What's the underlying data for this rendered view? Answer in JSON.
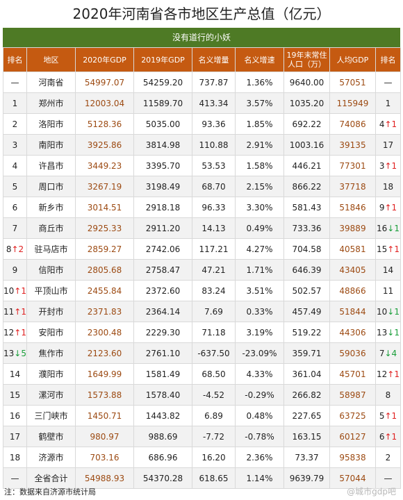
{
  "title": "2020年河南省各市地区生产总值（亿元）",
  "subtitle": "没有道行的小妖",
  "headers": [
    "排名",
    "地区",
    "2020年GDP",
    "2019年GDP",
    "名义增量",
    "名义增速",
    "19年末常住\n人口（万）",
    "人均GDP",
    "排名"
  ],
  "rows": [
    {
      "rank": "—",
      "rank_change": "",
      "region": "河南省",
      "gdp2020": "54997.07",
      "gdp2019": "54259.20",
      "increase": "737.87",
      "growth": "1.36%",
      "population": "9640.00",
      "per_capita": "57051",
      "pc_rank": "—",
      "pc_change": ""
    },
    {
      "rank": "1",
      "rank_change": "",
      "region": "郑州市",
      "gdp2020": "12003.04",
      "gdp2019": "11589.70",
      "increase": "413.34",
      "growth": "3.57%",
      "population": "1035.20",
      "per_capita": "115949",
      "pc_rank": "1",
      "pc_change": ""
    },
    {
      "rank": "2",
      "rank_change": "",
      "region": "洛阳市",
      "gdp2020": "5128.36",
      "gdp2019": "5035.00",
      "increase": "93.36",
      "growth": "1.85%",
      "population": "692.22",
      "per_capita": "74086",
      "pc_rank": "4",
      "pc_change": "↑1"
    },
    {
      "rank": "3",
      "rank_change": "",
      "region": "南阳市",
      "gdp2020": "3925.86",
      "gdp2019": "3814.98",
      "increase": "110.88",
      "growth": "2.91%",
      "population": "1003.16",
      "per_capita": "39135",
      "pc_rank": "17",
      "pc_change": ""
    },
    {
      "rank": "4",
      "rank_change": "",
      "region": "许昌市",
      "gdp2020": "3449.23",
      "gdp2019": "3395.70",
      "increase": "53.53",
      "growth": "1.58%",
      "population": "446.21",
      "per_capita": "77301",
      "pc_rank": "3",
      "pc_change": "↑1"
    },
    {
      "rank": "5",
      "rank_change": "",
      "region": "周口市",
      "gdp2020": "3267.19",
      "gdp2019": "3198.49",
      "increase": "68.70",
      "growth": "2.15%",
      "population": "866.22",
      "per_capita": "37718",
      "pc_rank": "18",
      "pc_change": ""
    },
    {
      "rank": "6",
      "rank_change": "",
      "region": "新乡市",
      "gdp2020": "3014.51",
      "gdp2019": "2918.18",
      "increase": "96.33",
      "growth": "3.30%",
      "population": "581.43",
      "per_capita": "51846",
      "pc_rank": "9",
      "pc_change": "↑1"
    },
    {
      "rank": "7",
      "rank_change": "",
      "region": "商丘市",
      "gdp2020": "2925.33",
      "gdp2019": "2911.20",
      "increase": "14.13",
      "growth": "0.49%",
      "population": "733.36",
      "per_capita": "39889",
      "pc_rank": "16",
      "pc_change": "↓1"
    },
    {
      "rank": "8",
      "rank_change": "↑2",
      "region": "驻马店市",
      "gdp2020": "2859.27",
      "gdp2019": "2742.06",
      "increase": "117.21",
      "growth": "4.27%",
      "population": "704.58",
      "per_capita": "40581",
      "pc_rank": "15",
      "pc_change": "↑1"
    },
    {
      "rank": "9",
      "rank_change": "",
      "region": "信阳市",
      "gdp2020": "2805.68",
      "gdp2019": "2758.47",
      "increase": "47.21",
      "growth": "1.71%",
      "population": "646.39",
      "per_capita": "43405",
      "pc_rank": "14",
      "pc_change": ""
    },
    {
      "rank": "10",
      "rank_change": "↑1",
      "region": "平顶山市",
      "gdp2020": "2455.84",
      "gdp2019": "2372.60",
      "increase": "83.24",
      "growth": "3.51%",
      "population": "502.57",
      "per_capita": "48866",
      "pc_rank": "11",
      "pc_change": ""
    },
    {
      "rank": "11",
      "rank_change": "↑1",
      "region": "开封市",
      "gdp2020": "2371.83",
      "gdp2019": "2364.14",
      "increase": "7.69",
      "growth": "0.33%",
      "population": "457.49",
      "per_capita": "51844",
      "pc_rank": "10",
      "pc_change": "↓1"
    },
    {
      "rank": "12",
      "rank_change": "↑1",
      "region": "安阳市",
      "gdp2020": "2300.48",
      "gdp2019": "2229.30",
      "increase": "71.18",
      "growth": "3.19%",
      "population": "519.22",
      "per_capita": "44306",
      "pc_rank": "13",
      "pc_change": "↓1"
    },
    {
      "rank": "13",
      "rank_change": "↓5",
      "region": "焦作市",
      "gdp2020": "2123.60",
      "gdp2019": "2761.10",
      "increase": "-637.50",
      "growth": "-23.09%",
      "population": "359.71",
      "per_capita": "59036",
      "pc_rank": "7",
      "pc_change": "↓4"
    },
    {
      "rank": "14",
      "rank_change": "",
      "region": "濮阳市",
      "gdp2020": "1649.99",
      "gdp2019": "1581.49",
      "increase": "68.50",
      "growth": "4.33%",
      "population": "361.04",
      "per_capita": "45701",
      "pc_rank": "12",
      "pc_change": "↑1"
    },
    {
      "rank": "15",
      "rank_change": "",
      "region": "漯河市",
      "gdp2020": "1573.88",
      "gdp2019": "1578.40",
      "increase": "-4.52",
      "growth": "-0.29%",
      "population": "266.82",
      "per_capita": "58987",
      "pc_rank": "8",
      "pc_change": ""
    },
    {
      "rank": "16",
      "rank_change": "",
      "region": "三门峡市",
      "gdp2020": "1450.71",
      "gdp2019": "1443.82",
      "increase": "6.89",
      "growth": "0.48%",
      "population": "227.65",
      "per_capita": "63725",
      "pc_rank": "5",
      "pc_change": "↑1"
    },
    {
      "rank": "17",
      "rank_change": "",
      "region": "鹤壁市",
      "gdp2020": "980.97",
      "gdp2019": "988.69",
      "increase": "-7.72",
      "growth": "-0.78%",
      "population": "163.15",
      "per_capita": "60127",
      "pc_rank": "6",
      "pc_change": "↑1"
    },
    {
      "rank": "18",
      "rank_change": "",
      "region": "济源市",
      "gdp2020": "703.16",
      "gdp2019": "686.96",
      "increase": "16.20",
      "growth": "2.36%",
      "population": "73.37",
      "per_capita": "95838",
      "pc_rank": "2",
      "pc_change": ""
    },
    {
      "rank": "—",
      "rank_change": "",
      "region": "全省合计",
      "gdp2020": "54988.93",
      "gdp2019": "54370.28",
      "increase": "618.65",
      "growth": "1.14%",
      "population": "9639.79",
      "per_capita": "57044",
      "pc_rank": "—",
      "pc_change": ""
    }
  ],
  "footer": "注：数据来自济源市统计局",
  "watermark": "@城市gdp吧",
  "colors": {
    "header_bg": "#c55a11",
    "subtitle_bg": "#4e7a25",
    "accent_text": "#9c4a12",
    "up": "#e02020",
    "down": "#1a9e3a"
  }
}
